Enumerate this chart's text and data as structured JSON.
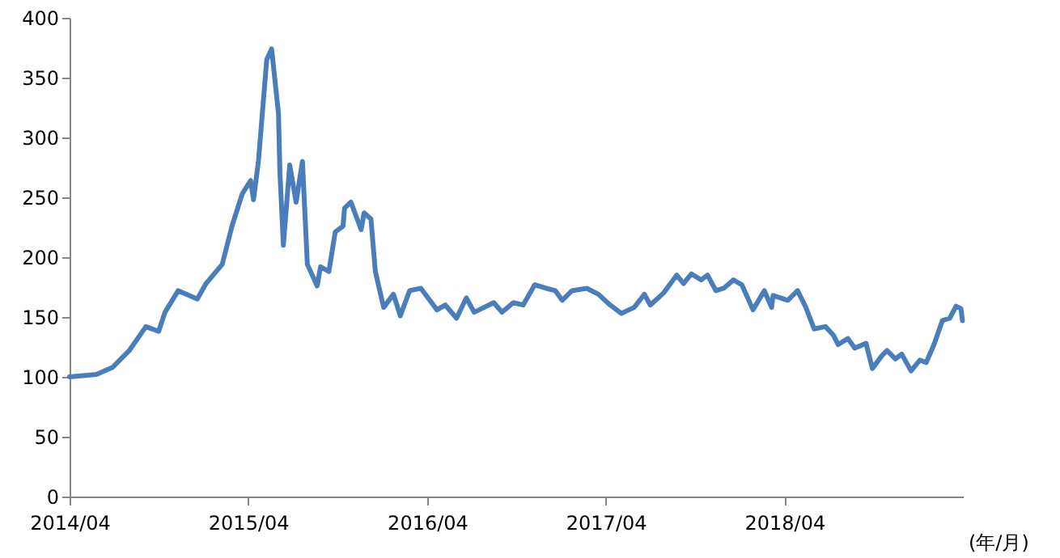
{
  "chart_data": {
    "type": "line",
    "xlabel": "(年/月)",
    "x": [
      "2014-04-01",
      "2014-05-26",
      "2014-06-28",
      "2014-08-01",
      "2014-09-04",
      "2014-09-30",
      "2014-10-13",
      "2014-11-09",
      "2014-12-18",
      "2015-01-05",
      "2015-02-07",
      "2015-02-27",
      "2015-03-20",
      "2015-04-06",
      "2015-04-12",
      "2015-04-22",
      "2015-05-09",
      "2015-05-19",
      "2015-06-02",
      "2015-06-05",
      "2015-06-12",
      "2015-06-25",
      "2015-07-08",
      "2015-07-21",
      "2015-07-31",
      "2015-08-20",
      "2015-08-27",
      "2015-09-13",
      "2015-09-26",
      "2015-10-12",
      "2015-10-15",
      "2015-10-28",
      "2015-11-18",
      "2015-11-24",
      "2015-12-08",
      "2015-12-17",
      "2016-01-03",
      "2016-01-23",
      "2016-02-06",
      "2016-02-25",
      "2016-03-19",
      "2016-04-21",
      "2016-05-08",
      "2016-05-31",
      "2016-06-20",
      "2016-07-06",
      "2016-08-15",
      "2016-09-01",
      "2016-09-24",
      "2016-10-14",
      "2016-11-07",
      "2016-11-30",
      "2016-12-19",
      "2017-01-02",
      "2017-01-22",
      "2017-02-21",
      "2017-03-17",
      "2017-04-10",
      "2017-05-03",
      "2017-05-29",
      "2017-06-19",
      "2017-07-01",
      "2017-07-28",
      "2017-08-24",
      "2017-09-07",
      "2017-09-23",
      "2017-10-13",
      "2017-10-26",
      "2017-11-12",
      "2017-11-28",
      "2017-12-18",
      "2018-01-04",
      "2018-01-27",
      "2018-02-19",
      "2018-03-06",
      "2018-03-09",
      "2018-04-08",
      "2018-04-28",
      "2018-05-15",
      "2018-06-01",
      "2018-06-24",
      "2018-07-10",
      "2018-07-20",
      "2018-08-09",
      "2018-08-23",
      "2018-09-15",
      "2018-09-28",
      "2018-10-18",
      "2018-10-28",
      "2018-11-14",
      "2018-11-27",
      "2018-12-16",
      "2019-01-03",
      "2019-01-16",
      "2019-02-01",
      "2019-02-18",
      "2019-03-05",
      "2019-03-18",
      "2019-03-28",
      "2019-03-31"
    ],
    "series": [
      {
        "color": "#4a7ebb",
        "values": [
          100,
          102,
          108,
          122,
          142,
          138,
          154,
          172,
          165,
          178,
          194,
          226,
          253,
          264,
          248,
          280,
          365,
          374,
          320,
          270,
          210,
          277,
          246,
          280,
          194,
          176,
          192,
          188,
          221,
          226,
          241,
          246,
          223,
          237,
          232,
          188,
          158,
          169,
          151,
          172,
          174,
          156,
          160,
          149,
          166,
          154,
          162,
          154,
          162,
          160,
          177,
          174,
          172,
          164,
          172,
          174,
          169,
          160,
          153,
          158,
          169,
          160,
          170,
          185,
          178,
          186,
          181,
          185,
          172,
          174,
          181,
          177,
          156,
          172,
          158,
          168,
          164,
          172,
          158,
          140,
          142,
          135,
          127,
          132,
          124,
          128,
          107,
          118,
          122,
          115,
          119,
          105,
          114,
          112,
          127,
          147,
          149,
          159,
          157,
          147
        ]
      }
    ],
    "xlim": [
      "2014-04-01",
      "2019-04-01"
    ],
    "xticks": [
      {
        "value": "2014-04",
        "label": "2014/04"
      },
      {
        "value": "2015-04",
        "label": "2015/04"
      },
      {
        "value": "2016-04",
        "label": "2016/04"
      },
      {
        "value": "2017-04",
        "label": "2017/04"
      },
      {
        "value": "2018-04",
        "label": "2018/04"
      }
    ],
    "ylim": [
      0,
      400
    ],
    "yticks": [
      0,
      50,
      100,
      150,
      200,
      250,
      300,
      350,
      400
    ],
    "grid": false,
    "marker": "none",
    "line_style": "solid"
  }
}
